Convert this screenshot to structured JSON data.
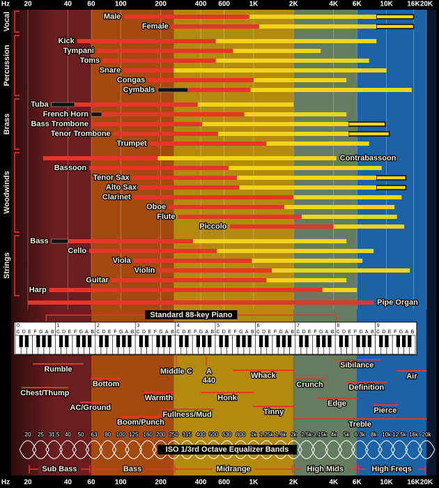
{
  "chart_data": {
    "type": "range",
    "x_label": "Hz",
    "xscale": "log",
    "xlim": [
      20,
      20000
    ],
    "xticks": [
      20,
      40,
      60,
      100,
      200,
      400,
      600,
      {
        "value": 1000,
        "label": "1K"
      },
      {
        "value": 2000,
        "label": "2K"
      },
      {
        "value": 4000,
        "label": "4K"
      },
      {
        "value": 6000,
        "label": "6K"
      },
      {
        "value": 10000,
        "label": "10K"
      },
      {
        "value": 16000,
        "label": "16K"
      },
      {
        "value": 20000,
        "label": "20K"
      }
    ],
    "grid": true,
    "colors": {
      "fundamental": "#e8352a",
      "harmonics": "#f2d41a",
      "extended": "#111111"
    },
    "regions": [
      {
        "name": "Sub Bass",
        "range": [
          20,
          60
        ],
        "color": "#6b1d1f"
      },
      {
        "name": "Bass",
        "range": [
          60,
          250
        ],
        "color": "#a4490f"
      },
      {
        "name": "Midrange",
        "range": [
          250,
          2000
        ],
        "color": "#b38a10"
      },
      {
        "name": "High Mids",
        "range": [
          2000,
          6000
        ],
        "color": "#647d60"
      },
      {
        "name": "High Freqs",
        "range": [
          6000,
          20000
        ],
        "color": "#1b62a6"
      }
    ],
    "groups": [
      {
        "name": "Vocal",
        "instruments": [
          {
            "name": "Male",
            "range": [
              105,
              930,
              8400
            ],
            "extended": [
              8400,
              16000
            ]
          },
          {
            "name": "Female",
            "range": [
              240,
              1100,
              8400
            ],
            "extended": [
              8400,
              16000
            ]
          }
        ]
      },
      {
        "name": "Percussion",
        "instruments": [
          {
            "name": "Kick",
            "range": [
              47,
              520,
              8400
            ]
          },
          {
            "name": "Tympani",
            "range": [
              66,
              700,
              3200
            ]
          },
          {
            "name": "Toms",
            "range": [
              73,
              520,
              7400
            ]
          },
          {
            "name": "Snare",
            "range": [
              105,
              250,
              10000
            ]
          },
          {
            "name": "Congas",
            "range": [
              160,
              1000,
              5000
            ]
          },
          {
            "name": "Cymbals",
            "range": [
              320,
              950,
              15500
            ],
            "extended": [
              190,
              320
            ]
          }
        ]
      },
      {
        "name": "Brass",
        "instruments": [
          {
            "name": "Tuba",
            "range": [
              45,
              380,
              2000
            ],
            "extended": [
              30,
              45
            ]
          },
          {
            "name": "French Horn",
            "range": [
              72,
              850,
              5000
            ],
            "extended": [
              60,
              72
            ]
          },
          {
            "name": "Bass Trombone",
            "range": [
              60,
              410,
              5200
            ],
            "extended": [
              5200,
              9800
            ]
          },
          {
            "name": "Tenor Trombone",
            "range": [
              88,
              540,
              5200
            ],
            "extended": [
              5200,
              10500
            ]
          },
          {
            "name": "Trumpet",
            "range": [
              165,
              1250,
              7400
            ]
          }
        ]
      },
      {
        "name": "Woodwinds",
        "instruments": [
          {
            "name": "Contrabassoon",
            "range": [
              26,
              190,
              4200
            ],
            "label_side": "right"
          },
          {
            "name": "Bassoon",
            "range": [
              58,
              650,
              9200
            ]
          },
          {
            "name": "Tenor Sax",
            "range": [
              122,
              750,
              8400
            ],
            "extended": [
              8400,
              14000
            ]
          },
          {
            "name": "Alto Sax",
            "range": [
              138,
              780,
              8400
            ],
            "extended": [
              8400,
              14000
            ]
          },
          {
            "name": "Clarinet",
            "range": [
              125,
              2000,
              13000
            ]
          },
          {
            "name": "Oboe",
            "range": [
              230,
              1700,
              11500
            ]
          },
          {
            "name": "Flute",
            "range": [
              270,
              2300,
              12000
            ]
          },
          {
            "name": "Piccolo",
            "range": [
              660,
              4000,
              13600
            ]
          }
        ]
      },
      {
        "name": "Strings",
        "instruments": [
          {
            "name": "Bass",
            "range": [
              40,
              350,
              5000
            ],
            "extended": [
              30,
              40
            ]
          },
          {
            "name": "Cello",
            "range": [
              58,
              530,
              8000
            ]
          },
          {
            "name": "Viola",
            "range": [
              125,
              970,
              6600
            ]
          },
          {
            "name": "Violin",
            "range": [
              190,
              1370,
              15000
            ]
          },
          {
            "name": "Guitar",
            "range": [
              85,
              1250,
              5000
            ]
          },
          {
            "name": "Harp",
            "range": [
              29,
              3300,
              6000
            ]
          }
        ]
      }
    ],
    "other": [
      {
        "name": "Pipe Organ",
        "range": [
          20,
          8000
        ],
        "label_side": "right"
      }
    ],
    "piano": {
      "label": "Standard 88-key Piano",
      "range": [
        27.5,
        4186
      ],
      "octaves": [
        0,
        1,
        2,
        3,
        4,
        5,
        6,
        7,
        8,
        9
      ],
      "note_letters": [
        "C",
        "D",
        "E",
        "F",
        "G",
        "A",
        "B"
      ]
    },
    "markers": [
      {
        "lines": [
          "Middle C"
        ],
        "value": 261.6
      },
      {
        "lines": [
          "A",
          "440"
        ],
        "value": 440
      }
    ],
    "terms": [
      {
        "label": "Rumble",
        "range": [
          22,
          52
        ]
      },
      {
        "label": "Chest/Thump",
        "range": [
          18,
          40
        ]
      },
      {
        "label": "Bottom",
        "range": [
          60,
          100
        ]
      },
      {
        "label": "AC/Ground",
        "range": [
          50,
          70
        ]
      },
      {
        "label": "Warmth",
        "range": [
          150,
          250
        ]
      },
      {
        "label": "Boom/Punch",
        "range": [
          100,
          200
        ]
      },
      {
        "label": "Fullness/Mud",
        "range": [
          200,
          500
        ]
      },
      {
        "label": "Honk",
        "range": [
          400,
          1000
        ]
      },
      {
        "label": "Whack",
        "range": [
          700,
          2000
        ]
      },
      {
        "label": "Tinny",
        "range": [
          1000,
          2000
        ]
      },
      {
        "label": "Crunch",
        "range": [
          2000,
          3500
        ]
      },
      {
        "label": "Edge",
        "range": [
          3000,
          6000
        ]
      },
      {
        "label": "Sibilance",
        "range": [
          4000,
          9000
        ]
      },
      {
        "label": "Definition",
        "range": [
          5000,
          10000
        ]
      },
      {
        "label": "Pierce",
        "range": [
          8000,
          12000
        ]
      },
      {
        "label": "Air",
        "range": [
          12000,
          20000
        ]
      },
      {
        "label": "Treble",
        "range": [
          2000,
          20000
        ]
      }
    ],
    "iso_bands": {
      "title": "ISO 1/3rd Octave Equalizer Bands",
      "ticks": [
        20,
        25,
        31.5,
        40,
        50,
        63,
        80,
        100,
        125,
        160,
        200,
        250,
        315,
        400,
        500,
        630,
        800,
        {
          "value": 1000,
          "label": "1k"
        },
        {
          "value": 1250,
          "label": "1.25k"
        },
        {
          "value": 1600,
          "label": "1.6k"
        },
        {
          "value": 2000,
          "label": "2k"
        },
        {
          "value": 2500,
          "label": "2.5k"
        },
        {
          "value": 3150,
          "label": "3.15k"
        },
        {
          "value": 4000,
          "label": "4k"
        },
        {
          "value": 5000,
          "label": "5k"
        },
        {
          "value": 6300,
          "label": "6.3k"
        },
        {
          "value": 8000,
          "label": "8k"
        },
        {
          "value": 10000,
          "label": "10k"
        },
        {
          "value": 12500,
          "label": "12.5k"
        },
        {
          "value": 16000,
          "label": "16k"
        },
        {
          "value": 20000,
          "label": "20k"
        }
      ]
    }
  }
}
